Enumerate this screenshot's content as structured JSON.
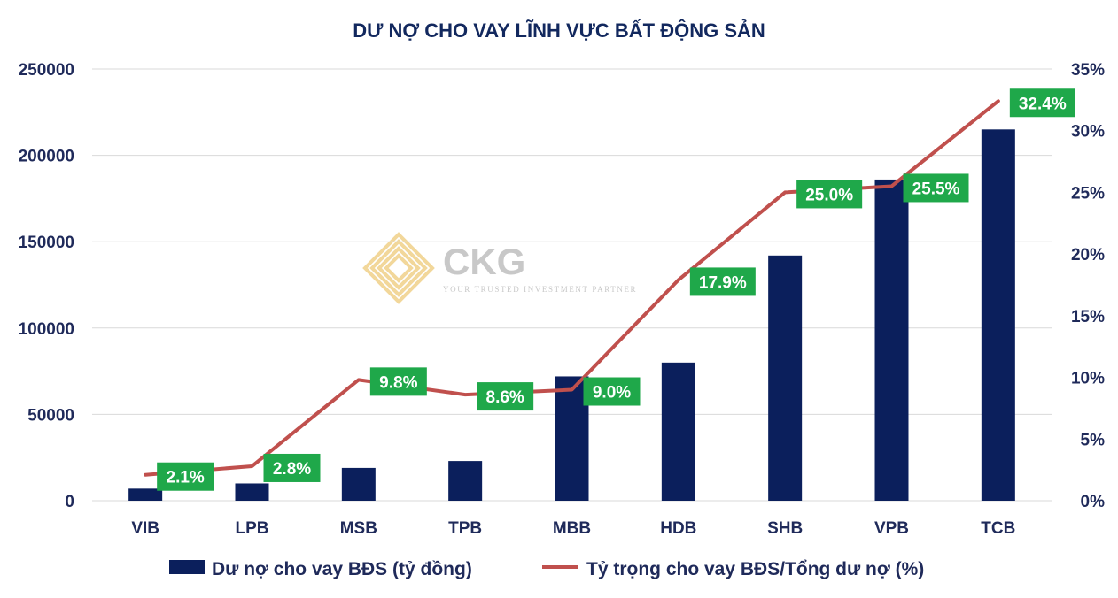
{
  "colors": {
    "bar": "#0B1F5C",
    "line": "#C0504D",
    "label_bg": "#1FA84A",
    "axis_text": "#1F2A5A",
    "title": "#12285E",
    "gridline": "#D9D9D9",
    "watermark": "#F2D79A",
    "watermark_text": "#C8C8C8"
  },
  "watermark": {
    "brand": "CKG",
    "tagline": "YOUR TRUSTED INVESTMENT PARTNER",
    "icon": "ckg-logo-icon"
  },
  "chart_data": {
    "type": "bar",
    "title": "DƯ NỢ CHO VAY LĨNH VỰC BẤT ĐỘNG SẢN",
    "categories": [
      "VIB",
      "LPB",
      "MSB",
      "TPB",
      "MBB",
      "HDB",
      "SHB",
      "VPB",
      "TCB"
    ],
    "series": [
      {
        "name": "Dư nợ cho vay BĐS (tỷ đồng)",
        "type": "bar",
        "axis": "left",
        "values": [
          7000,
          10000,
          19000,
          23000,
          72000,
          80000,
          142000,
          186000,
          215000
        ]
      },
      {
        "name": "Tỷ trọng cho vay BĐS/Tổng dư nợ (%)",
        "type": "line",
        "axis": "right",
        "values": [
          2.1,
          2.8,
          9.8,
          8.6,
          9.0,
          17.9,
          25.0,
          25.5,
          32.4
        ],
        "data_labels": [
          "2.1%",
          "2.8%",
          "9.8%",
          "8.6%",
          "9.0%",
          "17.9%",
          "25.0%",
          "25.5%",
          "32.4%"
        ]
      }
    ],
    "y_left": {
      "range": [
        0,
        250000
      ],
      "ticks": [
        0,
        50000,
        100000,
        150000,
        200000,
        250000
      ],
      "tick_labels": [
        "0",
        "50000",
        "100000",
        "150000",
        "200000",
        "250000"
      ]
    },
    "y_right": {
      "range": [
        0,
        35
      ],
      "ticks": [
        0,
        5,
        10,
        15,
        20,
        25,
        30,
        35
      ],
      "tick_labels": [
        "0%",
        "5%",
        "10%",
        "15%",
        "20%",
        "25%",
        "30%",
        "35%"
      ]
    },
    "grid": true,
    "legend": "bottom"
  }
}
